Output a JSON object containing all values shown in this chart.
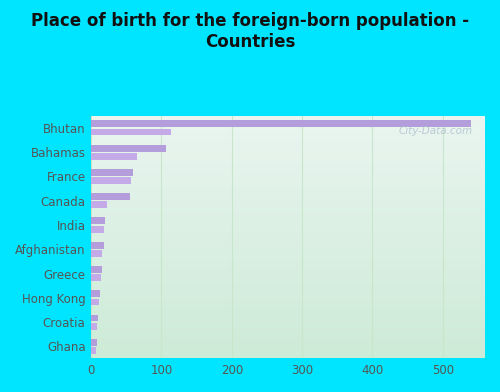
{
  "title": "Place of birth for the foreign-born population -\nCountries",
  "categories": [
    "Bhutan",
    "Bahamas",
    "France",
    "Canada",
    "India",
    "Afghanistan",
    "Greece",
    "Hong Kong",
    "Croatia",
    "Ghana"
  ],
  "values_a": [
    540,
    107,
    60,
    55,
    20,
    18,
    15,
    13,
    10,
    8
  ],
  "values_b": [
    113,
    65,
    57,
    22,
    19,
    16,
    14,
    12,
    9,
    7
  ],
  "bar_color_a": "#b39ddb",
  "bar_color_b": "#c5aae8",
  "background_outer": "#00e5ff",
  "background_inner_gradient_top": "#eaf5f0",
  "background_inner_gradient_bottom": "#dff0e8",
  "grid_color": "#c8e6c9",
  "text_color": "#555555",
  "title_color": "#111111",
  "xlim": [
    0,
    560
  ],
  "xticks": [
    0,
    100,
    200,
    300,
    400,
    500
  ],
  "watermark": "City-Data.com",
  "title_fontsize": 12,
  "label_fontsize": 8.5,
  "tick_fontsize": 8.5
}
